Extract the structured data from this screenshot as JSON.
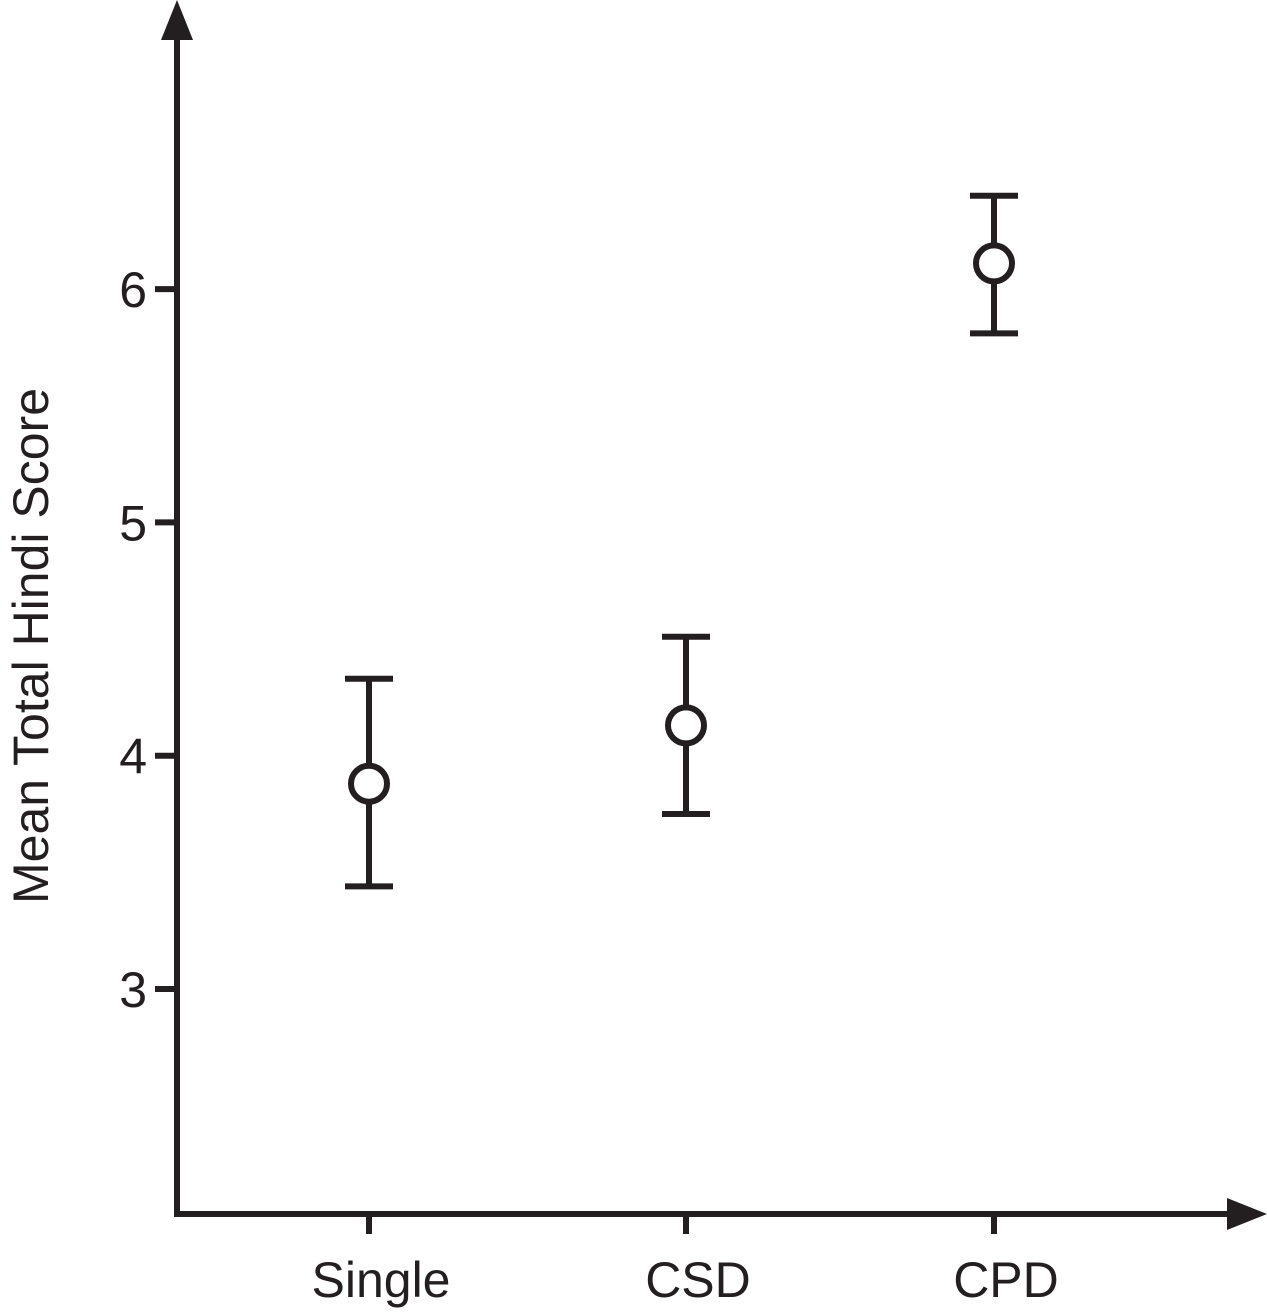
{
  "chart_data": {
    "type": "scatter",
    "title": "",
    "xlabel": "",
    "ylabel": "Mean Total Hindi Score",
    "categories": [
      "Single",
      "CSD",
      "CPD"
    ],
    "points": [
      {
        "category": "Single",
        "mean": 3.88,
        "lower": 3.44,
        "upper": 4.33
      },
      {
        "category": "CSD",
        "mean": 4.13,
        "lower": 3.75,
        "upper": 4.51
      },
      {
        "category": "CPD",
        "mean": 6.11,
        "lower": 5.81,
        "upper": 6.4
      }
    ],
    "yticks": [
      3,
      4,
      5,
      6
    ],
    "ylim": [
      2.1,
      6.95
    ],
    "grid": false,
    "legend": "none",
    "colors": {
      "ink": "#231f20",
      "marker_fill": "#ffffff"
    }
  }
}
